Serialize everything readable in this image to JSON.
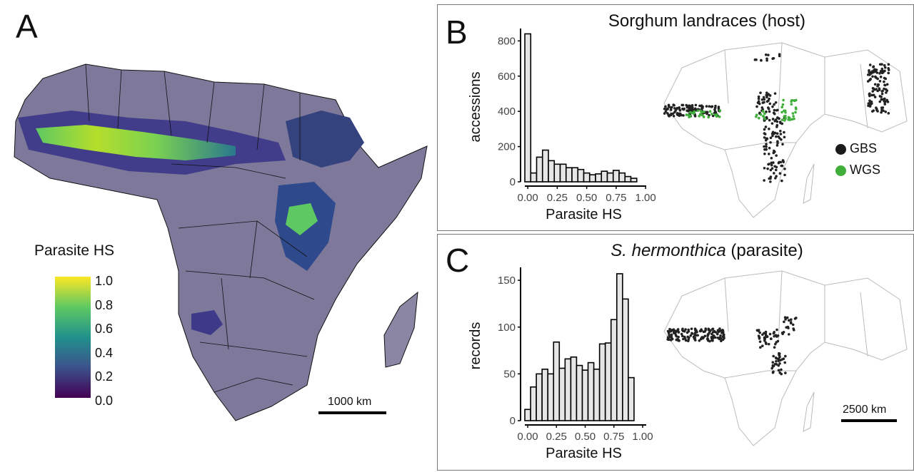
{
  "panels": {
    "a": {
      "letter": "A",
      "legend_title": "Parasite HS",
      "legend_ticks": [
        "1.0",
        "0.8",
        "0.6",
        "0.4",
        "0.2",
        "0.0"
      ],
      "scale_label": "1000 km",
      "colormap": [
        "#440154",
        "#3b528b",
        "#21918c",
        "#5ec962",
        "#fde725"
      ]
    },
    "b": {
      "letter": "B",
      "title": "Sorghum landraces (host)",
      "legend": [
        {
          "label": "GBS",
          "color": "#1a1a1a"
        },
        {
          "label": "WGS",
          "color": "#3fae3a"
        }
      ]
    },
    "c": {
      "letter": "C",
      "title_italic": "S. hermonthica",
      "title_rest": " (parasite)",
      "scale_label": "2500 km"
    }
  },
  "chart_data": [
    {
      "type": "bar",
      "panel": "B",
      "xlabel": "Parasite HS",
      "ylabel": "accessions",
      "xticks": [
        "0.00",
        "0.25",
        "0.50",
        "0.75",
        "1.00"
      ],
      "yticks": [
        0,
        200,
        400,
        600,
        800
      ],
      "xlim": [
        -0.025,
        0.975
      ],
      "ylim": [
        0,
        850
      ],
      "bin_width": 0.05,
      "bin_starts": [
        -0.025,
        0.025,
        0.075,
        0.125,
        0.175,
        0.225,
        0.275,
        0.325,
        0.375,
        0.425,
        0.475,
        0.525,
        0.575,
        0.625,
        0.675,
        0.725,
        0.775,
        0.825,
        0.875
      ],
      "values": [
        840,
        50,
        140,
        180,
        120,
        100,
        100,
        80,
        80,
        70,
        50,
        40,
        45,
        60,
        50,
        65,
        50,
        30,
        20
      ],
      "bar_color": "#e6e6e6"
    },
    {
      "type": "bar",
      "panel": "C",
      "xlabel": "Parasite HS",
      "ylabel": "records",
      "xticks": [
        "0.00",
        "0.25",
        "0.50",
        "0.75",
        "1.00"
      ],
      "yticks": [
        0,
        50,
        100,
        150
      ],
      "xlim": [
        -0.025,
        1.0
      ],
      "ylim": [
        0,
        160
      ],
      "bin_width": 0.05,
      "bin_starts": [
        -0.025,
        0.025,
        0.075,
        0.125,
        0.175,
        0.225,
        0.275,
        0.325,
        0.375,
        0.425,
        0.475,
        0.525,
        0.575,
        0.625,
        0.675,
        0.725,
        0.775,
        0.825,
        0.875
      ],
      "values": [
        12,
        36,
        50,
        55,
        50,
        84,
        56,
        66,
        68,
        59,
        54,
        62,
        55,
        82,
        83,
        108,
        157,
        130,
        46
      ],
      "bar_color": "#e6e6e6"
    }
  ]
}
